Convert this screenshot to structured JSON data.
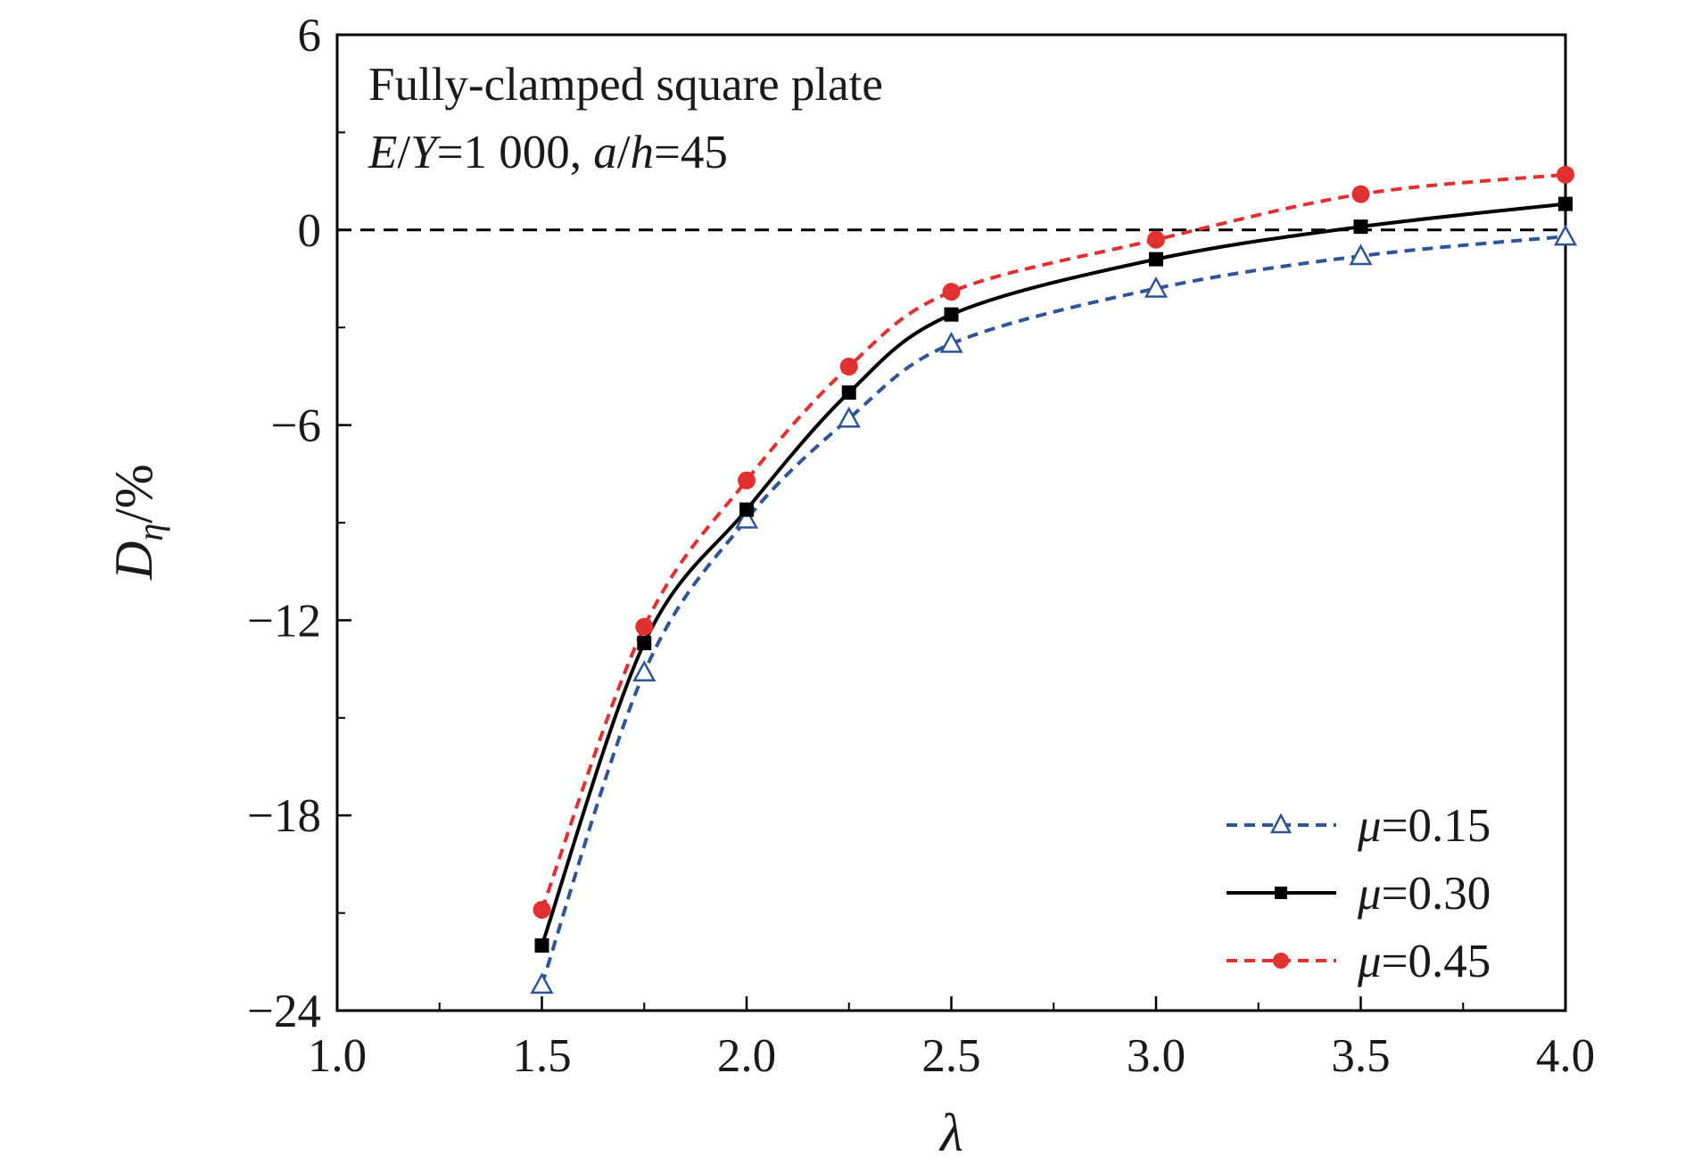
{
  "chart_data": {
    "type": "line",
    "title": "",
    "xlabel": "λ",
    "ylabel": "Dη/%",
    "xlim": [
      1.0,
      4.0
    ],
    "ylim": [
      -24,
      6
    ],
    "x_ticks": [
      "1.0",
      "1.5",
      "2.0",
      "2.5",
      "3.0",
      "3.5",
      "4.0"
    ],
    "y_ticks": [
      "6",
      "0",
      "−6",
      "−12",
      "−18",
      "−24"
    ],
    "grid": false,
    "legend_position": "bottom-right",
    "annotation": {
      "line1": "Fully-clamped square plate",
      "line2_parts": [
        "E",
        "/",
        "Y",
        "=1 000, ",
        "a",
        "/",
        "h",
        "=45"
      ]
    },
    "reference_line": {
      "y": 0,
      "style": "dashed",
      "color": "#000000"
    },
    "series": [
      {
        "name": "μ=0.15",
        "legend_parts": [
          "μ",
          "=0.15"
        ],
        "color": "#2f5597",
        "line_style": "dashed",
        "marker": "open-triangle",
        "x": [
          1.5,
          1.75,
          2.0,
          2.25,
          2.5,
          3.0,
          3.5,
          4.0
        ],
        "y": [
          -23.2,
          -13.6,
          -8.9,
          -5.8,
          -3.5,
          -1.8,
          -0.8,
          -0.2
        ]
      },
      {
        "name": "μ=0.30",
        "legend_parts": [
          "μ",
          "=0.30"
        ],
        "color": "#000000",
        "line_style": "solid",
        "marker": "filled-square",
        "x": [
          1.5,
          1.75,
          2.0,
          2.25,
          2.5,
          3.0,
          3.5,
          4.0
        ],
        "y": [
          -22.0,
          -12.7,
          -8.6,
          -5.0,
          -2.6,
          -0.9,
          0.1,
          0.8
        ]
      },
      {
        "name": "μ=0.45",
        "legend_parts": [
          "μ",
          "=0.45"
        ],
        "color": "#e03030",
        "line_style": "dashed",
        "marker": "filled-circle",
        "x": [
          1.5,
          1.75,
          2.0,
          2.25,
          2.5,
          3.0,
          3.5,
          4.0
        ],
        "y": [
          -20.9,
          -12.2,
          -7.7,
          -4.2,
          -1.9,
          -0.3,
          1.1,
          1.7
        ]
      }
    ]
  }
}
